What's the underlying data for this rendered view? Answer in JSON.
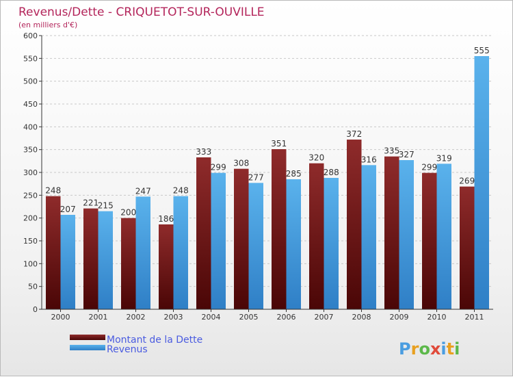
{
  "chart_data": {
    "type": "bar",
    "title": "Revenus/Dette - CRIQUETOT-SUR-OUVILLE",
    "subtitle": "(en milliers d'€)",
    "categories": [
      "2000",
      "2001",
      "2002",
      "2003",
      "2004",
      "2005",
      "2006",
      "2007",
      "2008",
      "2009",
      "2010",
      "2011"
    ],
    "series": [
      {
        "name": "Montant de la Dette",
        "color": "#8b1a1a",
        "values": [
          248,
          221,
          200,
          186,
          333,
          308,
          351,
          320,
          372,
          335,
          299,
          269
        ]
      },
      {
        "name": "Revenus",
        "color": "#4da6e6",
        "values": [
          207,
          215,
          247,
          248,
          299,
          277,
          285,
          288,
          316,
          327,
          319,
          555
        ]
      }
    ],
    "ylim": [
      0,
      600
    ],
    "yticks": [
      0,
      50,
      100,
      150,
      200,
      250,
      300,
      350,
      400,
      450,
      500,
      550,
      600
    ],
    "grid": true,
    "legend_position": "bottom-left"
  },
  "logo": {
    "text": "Proxiti"
  }
}
